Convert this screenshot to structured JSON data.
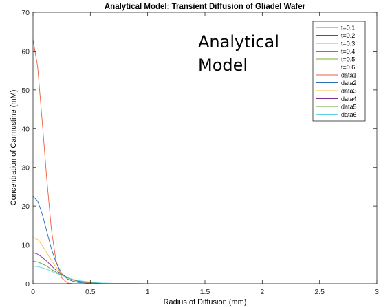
{
  "chart_data": {
    "type": "line",
    "title": "Analytical Model: Transient Diffusion of Gliadel Wafer",
    "xlabel": "Radius of Diffusion (mm)",
    "ylabel": "Concentration of Carmustine (mM)",
    "xlim": [
      0,
      3
    ],
    "ylim": [
      0,
      70
    ],
    "xticks": [
      0,
      0.5,
      1,
      1.5,
      2,
      2.5,
      3
    ],
    "yticks": [
      0,
      10,
      20,
      30,
      40,
      50,
      60,
      70
    ],
    "grid": false,
    "legend_position": "top-right",
    "annotation": "Analytical\nModel",
    "series": [
      {
        "name": "t=0.1",
        "color": "#d2691e",
        "x": [
          0,
          0.05,
          0.1,
          0.15,
          0.2,
          0.25,
          0.3,
          0.35,
          0.4,
          0.5,
          0.6,
          0.8,
          1.0,
          3.0
        ],
        "y": [
          0,
          0,
          0,
          0,
          0,
          0,
          0,
          0,
          0,
          0,
          0,
          0,
          0,
          0
        ]
      },
      {
        "name": "t=0.2",
        "color": "#1f5fa8",
        "x": [
          0,
          0.05,
          0.1,
          0.15,
          0.2,
          0.25,
          0.3,
          0.35,
          0.4,
          0.5,
          0.6,
          0.8,
          1.0,
          3.0
        ],
        "y": [
          0,
          0,
          0,
          0,
          0,
          0,
          0,
          0,
          0,
          0,
          0,
          0,
          0,
          0
        ]
      },
      {
        "name": "t=0.3",
        "color": "#c9b516",
        "x": [
          0,
          0.05,
          0.1,
          0.15,
          0.2,
          0.25,
          0.3,
          0.35,
          0.4,
          0.5,
          0.6,
          0.8,
          1.0,
          3.0
        ],
        "y": [
          0,
          0,
          0,
          0,
          0,
          0,
          0,
          0,
          0,
          0,
          0,
          0,
          0,
          0
        ]
      },
      {
        "name": "t=0.4",
        "color": "#b64fc8",
        "x": [
          0,
          0.05,
          0.1,
          0.15,
          0.2,
          0.25,
          0.3,
          0.35,
          0.4,
          0.5,
          0.6,
          0.8,
          1.0,
          3.0
        ],
        "y": [
          0,
          0,
          0,
          0,
          0,
          0,
          0,
          0,
          0,
          0,
          0,
          0,
          0,
          0
        ]
      },
      {
        "name": "t=0.5",
        "color": "#77ac30",
        "x": [
          0,
          0.05,
          0.1,
          0.15,
          0.2,
          0.25,
          0.3,
          0.35,
          0.4,
          0.5,
          0.6,
          0.8,
          1.0,
          3.0
        ],
        "y": [
          0,
          0,
          0,
          0,
          0,
          0,
          0,
          0,
          0,
          0,
          0,
          0,
          0,
          0
        ]
      },
      {
        "name": "t=0.6",
        "color": "#4dbeee",
        "x": [
          0,
          0.05,
          0.1,
          0.15,
          0.2,
          0.25,
          0.3,
          0.35,
          0.4,
          0.5,
          0.6,
          0.8,
          1.0,
          3.0
        ],
        "y": [
          0,
          0,
          0,
          0,
          0,
          0,
          0,
          0,
          0,
          0,
          0,
          0,
          0,
          0
        ]
      },
      {
        "name": "data1",
        "color": "#e8603c",
        "x": [
          0,
          0.04,
          0.08,
          0.12,
          0.16,
          0.2,
          0.25,
          0.3,
          0.35,
          0.4,
          0.5,
          1.0,
          3.0
        ],
        "y": [
          63,
          56,
          42,
          27,
          14,
          6,
          1.5,
          0.2,
          0,
          0,
          0,
          0,
          0
        ]
      },
      {
        "name": "data2",
        "color": "#2a6fb5",
        "x": [
          0,
          0.04,
          0.08,
          0.12,
          0.16,
          0.2,
          0.25,
          0.3,
          0.35,
          0.4,
          0.5,
          0.6,
          0.7,
          1.0,
          3.0
        ],
        "y": [
          22.5,
          21.3,
          18,
          13.5,
          9,
          5.5,
          2.6,
          1.2,
          0.6,
          0.3,
          0.1,
          0.05,
          0,
          0,
          0
        ]
      },
      {
        "name": "data3",
        "color": "#f5c242",
        "x": [
          0,
          0.04,
          0.08,
          0.12,
          0.16,
          0.2,
          0.25,
          0.3,
          0.35,
          0.4,
          0.5,
          0.6,
          0.7,
          1.0,
          3.0
        ],
        "y": [
          12,
          11.4,
          9.9,
          8,
          6,
          4.3,
          2.6,
          1.5,
          0.9,
          0.5,
          0.2,
          0.1,
          0.05,
          0,
          0
        ]
      },
      {
        "name": "data4",
        "color": "#7e2f8e",
        "x": [
          0,
          0.04,
          0.08,
          0.12,
          0.16,
          0.2,
          0.25,
          0.3,
          0.35,
          0.4,
          0.5,
          0.6,
          0.7,
          1.0,
          3.0
        ],
        "y": [
          8,
          7.6,
          6.8,
          5.8,
          4.6,
          3.5,
          2.4,
          1.6,
          1.0,
          0.6,
          0.25,
          0.1,
          0.05,
          0,
          0
        ]
      },
      {
        "name": "data5",
        "color": "#5aa02c",
        "x": [
          0,
          0.04,
          0.08,
          0.12,
          0.16,
          0.2,
          0.25,
          0.3,
          0.35,
          0.4,
          0.5,
          0.6,
          0.7,
          1.0,
          3.0
        ],
        "y": [
          5.8,
          5.6,
          5.1,
          4.5,
          3.7,
          3.0,
          2.2,
          1.5,
          1.0,
          0.7,
          0.3,
          0.12,
          0.05,
          0,
          0
        ]
      },
      {
        "name": "data6",
        "color": "#5fd4e8",
        "x": [
          0,
          0.04,
          0.08,
          0.12,
          0.16,
          0.2,
          0.25,
          0.3,
          0.35,
          0.4,
          0.5,
          0.6,
          0.7,
          1.0,
          3.0
        ],
        "y": [
          4.5,
          4.4,
          4.1,
          3.7,
          3.2,
          2.7,
          2.1,
          1.6,
          1.1,
          0.8,
          0.4,
          0.18,
          0.08,
          0,
          0
        ]
      }
    ]
  }
}
